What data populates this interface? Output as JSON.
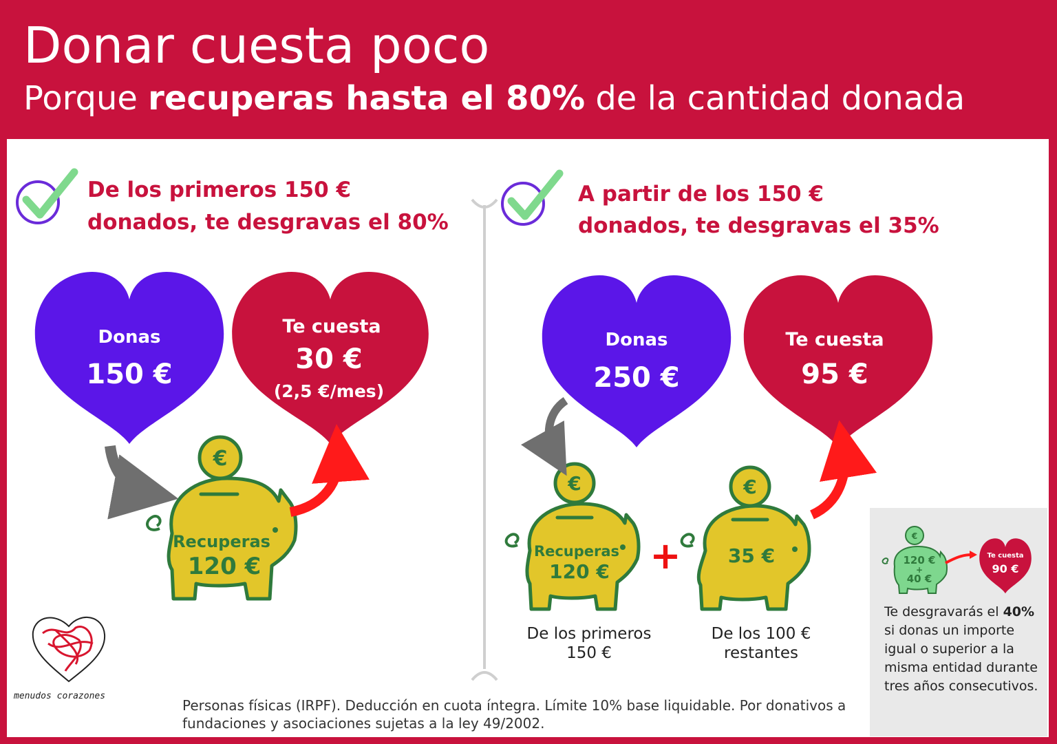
{
  "header": {
    "title": "Donar cuesta poco",
    "subtitle_pre": "Porque ",
    "subtitle_bold": "recuperas hasta el 80%",
    "subtitle_post": " de la cantidad donada"
  },
  "left": {
    "heading_line1": "De los primeros 150 €",
    "heading_line2": "donados, te desgravas el 80%",
    "donas_label": "Donas",
    "donas_value": "150 €",
    "cost_label": "Te cuesta",
    "cost_value": "30 €",
    "cost_note": "(2,5 €/mes)",
    "piggy_label": "Recuperas",
    "piggy_value": "120 €",
    "coin_symbol": "€"
  },
  "right": {
    "heading_line1": "A partir de los 150 €",
    "heading_line2": "donados, te desgravas el 35%",
    "donas_label": "Donas",
    "donas_value": "250 €",
    "cost_label": "Te cuesta",
    "cost_value": "95 €",
    "piggy1_label": "Recuperas",
    "piggy1_value": "120 €",
    "plus": "+",
    "piggy2_value": "35 €",
    "caption1": "De los primeros 150 €",
    "caption2": "De los 100 € restantes",
    "coin_symbol": "€"
  },
  "aside": {
    "piggy_line1": "120 €",
    "piggy_plus": "+",
    "piggy_line2": "40 €",
    "heart_label": "Te cuesta",
    "heart_value": "90 €",
    "coin_symbol": "€",
    "text_pre": "Te desgravarás  el ",
    "text_bold": "40%",
    "text_post": " si donas un importe igual o superior a la misma entidad durante tres años consecutivos."
  },
  "footnote": "Personas físicas (IRPF). Deducción en cuota íntegra. Límite 10% base liquidable. Por donativos a fundaciones y asociaciones sujetas a la ley 49/2002.",
  "logo_text": "menudos corazones",
  "colors": {
    "brand_red": "#c8123d",
    "purple": "#5b16e8",
    "piggy_yellow": "#e2c62a",
    "piggy_green": "#2f7a3c",
    "arrow_red": "#ff1a1a",
    "check_green": "#7fd98d"
  }
}
